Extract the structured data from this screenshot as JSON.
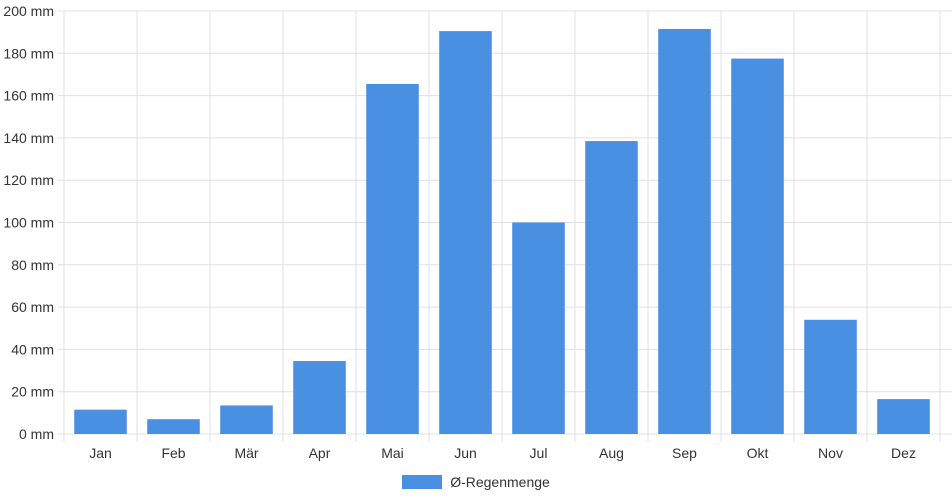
{
  "chart_data": {
    "type": "bar",
    "categories": [
      "Jan",
      "Feb",
      "Mär",
      "Apr",
      "Mai",
      "Jun",
      "Jul",
      "Aug",
      "Sep",
      "Okt",
      "Nov",
      "Dez"
    ],
    "series": [
      {
        "name": "Ø-Regenmenge",
        "values": [
          11.5,
          7,
          13.5,
          34.5,
          165.5,
          190.5,
          100,
          138.5,
          191.5,
          177.5,
          54,
          16.5
        ],
        "color": "#4a90e2"
      }
    ],
    "ylim": [
      0,
      200
    ],
    "yticks": [
      0,
      20,
      40,
      60,
      80,
      100,
      120,
      140,
      160,
      180,
      200
    ],
    "ytick_labels": [
      "0 mm",
      "20 mm",
      "40 mm",
      "60 mm",
      "80 mm",
      "100 mm",
      "120 mm",
      "140 mm",
      "160 mm",
      "180 mm",
      "200 mm"
    ],
    "grid": true,
    "legend_position": "bottom-center"
  }
}
